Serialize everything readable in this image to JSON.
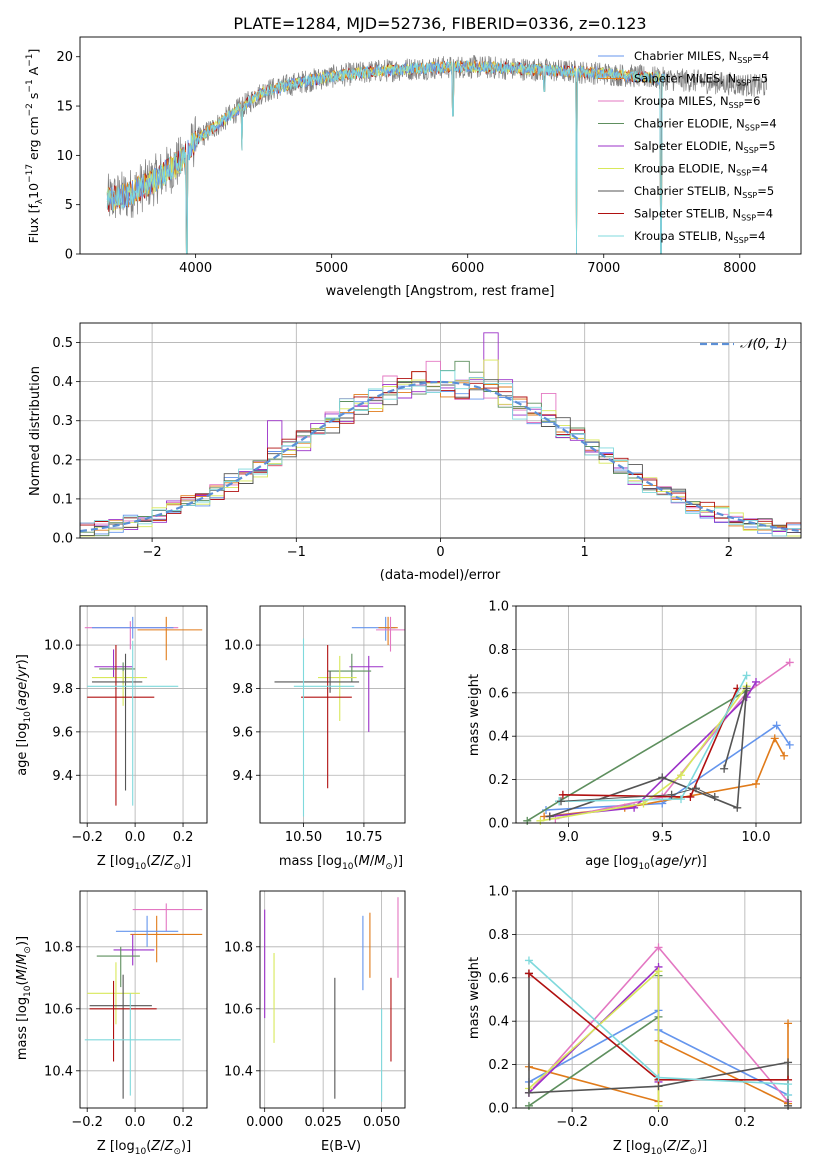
{
  "figure_title": "PLATE=1284, MJD=52736, FIBERID=0336, z=0.123",
  "colors": {
    "chabrier_miles": "#6495ed",
    "salpeter_miles": "#e07b1a",
    "kroupa_miles": "#e377c2",
    "chabrier_elodie": "#5e8f5e",
    "salpeter_elodie": "#9b30c8",
    "kroupa_elodie": "#d8e85a",
    "chabrier_stelib": "#555555",
    "salpeter_stelib": "#b01010",
    "kroupa_stelib": "#7fd9dc",
    "data": "#808080",
    "normal": "#5b8fd6",
    "grid": "#b0b0b0"
  },
  "chart_data": [
    {
      "type": "line",
      "panel": "spectrum",
      "xlabel": "wavelength [Angstrom, rest frame]",
      "ylabel": "Flux [fλ10⁻¹⁷ erg cm⁻² s⁻¹ A⁻¹]",
      "xlim": [
        3150,
        8450
      ],
      "ylim": [
        0,
        22
      ],
      "xticks": [
        "4000",
        "5000",
        "6000",
        "7000",
        "8000"
      ],
      "yticks": [
        "0",
        "5",
        "10",
        "15",
        "20"
      ],
      "legend_position": "top-right",
      "legend": [
        {
          "name": "Chabrier MILES, N",
          "sub": "SSP",
          "suffix": "=4",
          "color_key": "chabrier_miles"
        },
        {
          "name": "Salpeter MILES, N",
          "sub": "SSP",
          "suffix": "=5",
          "color_key": "salpeter_miles"
        },
        {
          "name": "Kroupa MILES, N",
          "sub": "SSP",
          "suffix": "=6",
          "color_key": "kroupa_miles"
        },
        {
          "name": "Chabrier ELODIE, N",
          "sub": "SSP",
          "suffix": "=4",
          "color_key": "chabrier_elodie"
        },
        {
          "name": "Salpeter ELODIE, N",
          "sub": "SSP",
          "suffix": "=5",
          "color_key": "salpeter_elodie"
        },
        {
          "name": "Kroupa ELODIE, N",
          "sub": "SSP",
          "suffix": "=4",
          "color_key": "kroupa_elodie"
        },
        {
          "name": "Chabrier STELIB, N",
          "sub": "SSP",
          "suffix": "=5",
          "color_key": "chabrier_stelib"
        },
        {
          "name": "Salpeter STELIB, N",
          "sub": "SSP",
          "suffix": "=4",
          "color_key": "salpeter_stelib"
        },
        {
          "name": "Kroupa STELIB, N",
          "sub": "SSP",
          "suffix": "=4",
          "color_key": "kroupa_stelib"
        }
      ],
      "continuum": {
        "x": [
          3350,
          3500,
          3700,
          3900,
          4000,
          4200,
          4500,
          4800,
          5000,
          5300,
          5600,
          6000,
          6500,
          7000,
          7500,
          8200
        ],
        "y": [
          5.5,
          6.0,
          7.5,
          9.5,
          11.5,
          13.5,
          16.5,
          17.5,
          18.0,
          18.5,
          18.8,
          19.0,
          18.7,
          18.3,
          17.7,
          17.0
        ]
      },
      "dips": [
        {
          "x": 3933,
          "y": 0.0
        },
        {
          "x": 6800,
          "y": 0.0
        },
        {
          "x": 7420,
          "y": 0.0
        },
        {
          "x": 4340,
          "y": 10.5
        },
        {
          "x": 5890,
          "y": 14.0
        },
        {
          "x": 6563,
          "y": 16.5
        }
      ],
      "model_range": [
        3350,
        7450
      ],
      "data_range": [
        3350,
        8200
      ]
    },
    {
      "type": "histogram",
      "panel": "residuals",
      "xlabel": "(data-model)/error",
      "ylabel": "Normed distribution",
      "xlim": [
        -2.5,
        2.5
      ],
      "ylim": [
        0,
        0.55
      ],
      "xticks": [
        "−2",
        "−1",
        "0",
        "1",
        "2"
      ],
      "yticks": [
        "0.0",
        "0.1",
        "0.2",
        "0.3",
        "0.4",
        "0.5"
      ],
      "bin_width": 0.1,
      "legend_position": "top-right",
      "legend": [
        {
          "name": "𝒩(0, 1)",
          "color_key": "normal"
        }
      ],
      "spikes": [
        {
          "x": 0.35,
          "y": 0.525,
          "color_key": "salpeter_elodie"
        },
        {
          "x": 0.35,
          "y": 0.455,
          "color_key": "kroupa_elodie"
        },
        {
          "x": 0.15,
          "y": 0.452,
          "color_key": "chabrier_elodie"
        },
        {
          "x": -0.05,
          "y": 0.452,
          "color_key": "kroupa_miles"
        },
        {
          "x": -1.15,
          "y": 0.3,
          "color_key": "salpeter_elodie"
        },
        {
          "x": 0.75,
          "y": 0.37,
          "color_key": "kroupa_miles"
        }
      ]
    },
    {
      "type": "errorbar",
      "panel": "age-vs-Z",
      "xlabel": "Z [log₁₀(Z/Z⊙)]",
      "ylabel": "age  [log₁₀(age/yr)]",
      "xlim": [
        -0.23,
        0.3
      ],
      "ylim": [
        9.18,
        10.18
      ],
      "xticks": [
        "−0.2",
        "0.0",
        "0.2"
      ],
      "yticks": [
        "9.4",
        "9.6",
        "9.8",
        "10.0"
      ],
      "points": [
        {
          "x": -0.02,
          "xerr": [
            0.19,
            0.2
          ],
          "y": 10.08,
          "yerr": [
            0.1,
            0.03
          ],
          "color_key": "kroupa_miles"
        },
        {
          "x": 0.13,
          "xerr": [
            0.12,
            0.15
          ],
          "y": 10.07,
          "yerr": [
            0.14,
            0.06
          ],
          "color_key": "salpeter_miles"
        },
        {
          "x": -0.01,
          "xerr": [
            0.17,
            0.17
          ],
          "y": 10.08,
          "yerr": [
            0.05,
            0.05
          ],
          "color_key": "chabrier_miles"
        },
        {
          "x": -0.09,
          "xerr": [
            0.08,
            0.08
          ],
          "y": 9.9,
          "yerr": [
            0.05,
            0.08
          ],
          "color_key": "salpeter_elodie"
        },
        {
          "x": -0.05,
          "xerr": [
            0.1,
            0.05
          ],
          "y": 9.89,
          "yerr": [
            0.07,
            0.03
          ],
          "color_key": "chabrier_elodie"
        },
        {
          "x": -0.05,
          "xerr": [
            0.13,
            0.1
          ],
          "y": 9.85,
          "yerr": [
            0.13,
            0.03
          ],
          "color_key": "kroupa_elodie"
        },
        {
          "x": -0.04,
          "xerr": [
            0.14,
            0.07
          ],
          "y": 9.83,
          "yerr": [
            0.5,
            0.13
          ],
          "color_key": "chabrier_stelib"
        },
        {
          "x": -0.08,
          "xerr": [
            0.12,
            0.16
          ],
          "y": 9.76,
          "yerr": [
            0.5,
            0.24
          ],
          "color_key": "salpeter_stelib"
        },
        {
          "x": -0.01,
          "xerr": [
            0.19,
            0.19
          ],
          "y": 9.81,
          "yerr": [
            0.55,
            0.21
          ],
          "color_key": "kroupa_stelib"
        }
      ]
    },
    {
      "type": "errorbar",
      "panel": "age-vs-mass",
      "xlabel": "mass [log₁₀(M/M⊙)]",
      "xlim": [
        10.32,
        10.92
      ],
      "ylim": [
        9.18,
        10.18
      ],
      "xticks": [
        "10.50",
        "10.75"
      ],
      "yticks": [
        "9.4",
        "9.6",
        "9.8",
        "10.0"
      ],
      "points": [
        {
          "x": 10.84,
          "xerr": [
            0.14,
            0.04
          ],
          "y": 10.08,
          "yerr": [
            0.06,
            0.05
          ],
          "color_key": "chabrier_miles"
        },
        {
          "x": 10.85,
          "xerr": [
            0.04,
            0.04
          ],
          "y": 10.08,
          "yerr": [
            0.08,
            0.05
          ],
          "color_key": "salpeter_miles"
        },
        {
          "x": 10.86,
          "xerr": [
            0.06,
            0.06
          ],
          "y": 10.07,
          "yerr": [
            0.1,
            0.06
          ],
          "color_key": "kroupa_miles"
        },
        {
          "x": 10.77,
          "xerr": [
            0.08,
            0.06
          ],
          "y": 9.9,
          "yerr": [
            0.3,
            0.05
          ],
          "color_key": "salpeter_elodie"
        },
        {
          "x": 10.7,
          "xerr": [
            0.1,
            0.08
          ],
          "y": 9.88,
          "yerr": [
            0.05,
            0.08
          ],
          "color_key": "chabrier_elodie"
        },
        {
          "x": 10.65,
          "xerr": [
            0.09,
            0.07
          ],
          "y": 9.85,
          "yerr": [
            0.2,
            0.1
          ],
          "color_key": "kroupa_elodie"
        },
        {
          "x": 10.61,
          "xerr": [
            0.23,
            0.12
          ],
          "y": 9.83,
          "yerr": [
            0.05,
            0.05
          ],
          "color_key": "chabrier_stelib"
        },
        {
          "x": 10.6,
          "xerr": [
            0.11,
            0.1
          ],
          "y": 9.76,
          "yerr": [
            0.42,
            0.24
          ],
          "color_key": "salpeter_stelib"
        },
        {
          "x": 10.5,
          "xerr": [
            0.04,
            0.21
          ],
          "y": 9.81,
          "yerr": [
            0.6,
            0.22
          ],
          "color_key": "kroupa_stelib"
        }
      ]
    },
    {
      "type": "line",
      "panel": "mass-weight-vs-age",
      "xlabel": "age  [log₁₀(age/yr)]",
      "ylabel": "mass weight",
      "xlim": [
        8.72,
        10.24
      ],
      "ylim": [
        0,
        1
      ],
      "xticks": [
        "9.0",
        "9.5",
        "10.0"
      ],
      "yticks": [
        "0.0",
        "0.2",
        "0.4",
        "0.6",
        "0.8",
        "1.0"
      ],
      "series": [
        {
          "color_key": "chabrier_miles",
          "x": [
            8.88,
            9.5,
            10.11,
            10.18
          ],
          "y": [
            0.06,
            0.09,
            0.45,
            0.36
          ]
        },
        {
          "color_key": "salpeter_miles",
          "x": [
            8.87,
            9.3,
            10.0,
            10.1,
            10.15
          ],
          "y": [
            0.03,
            0.07,
            0.18,
            0.39,
            0.31
          ]
        },
        {
          "color_key": "kroupa_miles",
          "x": [
            8.93,
            9.5,
            9.95,
            10.18
          ],
          "y": [
            0.02,
            0.12,
            0.6,
            0.74
          ]
        },
        {
          "color_key": "chabrier_elodie",
          "x": [
            8.78,
            8.95,
            9.95
          ],
          "y": [
            0.01,
            0.1,
            0.61
          ]
        },
        {
          "color_key": "salpeter_elodie",
          "x": [
            8.9,
            9.35,
            9.95,
            10.0
          ],
          "y": [
            0.03,
            0.07,
            0.58,
            0.65
          ]
        },
        {
          "color_key": "kroupa_elodie",
          "x": [
            8.85,
            9.4,
            9.6,
            9.95
          ],
          "y": [
            0.01,
            0.09,
            0.22,
            0.63
          ]
        },
        {
          "color_key": "chabrier_stelib",
          "x": [
            8.9,
            9.5,
            9.9,
            9.95,
            9.83
          ],
          "y": [
            0.03,
            0.21,
            0.07,
            0.62,
            0.25
          ]
        },
        {
          "color_key": "salpeter_stelib",
          "x": [
            8.97,
            9.65,
            9.9
          ],
          "y": [
            0.13,
            0.12,
            0.62
          ]
        },
        {
          "color_key": "kroupa_stelib",
          "x": [
            8.95,
            9.6,
            9.95
          ],
          "y": [
            0.1,
            0.11,
            0.68
          ]
        }
      ],
      "extra_gray_series": {
        "x": [
          8.96,
          9.55,
          9.68,
          9.78
        ],
        "y": [
          0.1,
          0.13,
          0.16,
          0.12
        ]
      }
    },
    {
      "type": "errorbar",
      "panel": "mass-vs-Z",
      "xlabel": "Z [log₁₀(Z/Z⊙)]",
      "ylabel": "mass [log₁₀(M/M⊙)]",
      "xlim": [
        -0.23,
        0.3
      ],
      "ylim": [
        10.28,
        10.98
      ],
      "xticks": [
        "−0.2",
        "0.0",
        "0.2"
      ],
      "yticks": [
        "10.4",
        "10.6",
        "10.8"
      ],
      "points": [
        {
          "x": 0.13,
          "xerr": [
            0.14,
            0.15
          ],
          "y": 10.92,
          "yerr": [
            0.07,
            0.02
          ],
          "color_key": "kroupa_miles"
        },
        {
          "x": 0.09,
          "xerr": [
            0.11,
            0.19
          ],
          "y": 10.84,
          "yerr": [
            0.09,
            0.06
          ],
          "color_key": "salpeter_miles"
        },
        {
          "x": 0.05,
          "xerr": [
            0.13,
            0.13
          ],
          "y": 10.85,
          "yerr": [
            0.05,
            0.05
          ],
          "color_key": "chabrier_miles"
        },
        {
          "x": -0.01,
          "xerr": [
            0.08,
            0.09
          ],
          "y": 10.79,
          "yerr": [
            0.05,
            0.05
          ],
          "color_key": "salpeter_elodie"
        },
        {
          "x": -0.06,
          "xerr": [
            0.1,
            0.08
          ],
          "y": 10.77,
          "yerr": [
            0.1,
            0.03
          ],
          "color_key": "chabrier_elodie"
        },
        {
          "x": -0.08,
          "xerr": [
            0.12,
            0.1
          ],
          "y": 10.65,
          "yerr": [
            0.1,
            0.1
          ],
          "color_key": "kroupa_elodie"
        },
        {
          "x": -0.05,
          "xerr": [
            0.14,
            0.12
          ],
          "y": 10.61,
          "yerr": [
            0.3,
            0.1
          ],
          "color_key": "chabrier_stelib"
        },
        {
          "x": -0.09,
          "xerr": [
            0.1,
            0.18
          ],
          "y": 10.6,
          "yerr": [
            0.17,
            0.09
          ],
          "color_key": "salpeter_stelib"
        },
        {
          "x": -0.02,
          "xerr": [
            0.19,
            0.21
          ],
          "y": 10.5,
          "yerr": [
            0.18,
            0.15
          ],
          "color_key": "kroupa_stelib"
        }
      ]
    },
    {
      "type": "errorbar",
      "panel": "mass-vs-EBV",
      "xlabel": "E(B-V)",
      "xlim": [
        -0.002,
        0.06
      ],
      "ylim": [
        10.28,
        10.98
      ],
      "xticks": [
        "0.000",
        "0.025",
        "0.050"
      ],
      "yticks": [
        "10.4",
        "10.6",
        "10.8"
      ],
      "points": [
        {
          "x": 0.0,
          "y": 10.76,
          "yerr": [
            0.19,
            0.16
          ],
          "color_key": "salpeter_elodie"
        },
        {
          "x": 0.004,
          "y": 10.63,
          "yerr": [
            0.14,
            0.15
          ],
          "color_key": "kroupa_elodie"
        },
        {
          "x": 0.03,
          "y": 10.5,
          "yerr": [
            0.19,
            0.2
          ],
          "color_key": "chabrier_stelib"
        },
        {
          "x": 0.042,
          "y": 10.78,
          "yerr": [
            0.12,
            0.12
          ],
          "color_key": "chabrier_miles"
        },
        {
          "x": 0.045,
          "y": 10.8,
          "yerr": [
            0.1,
            0.11
          ],
          "color_key": "salpeter_miles"
        },
        {
          "x": 0.05,
          "y": 10.45,
          "yerr": [
            0.15,
            0.15
          ],
          "color_key": "kroupa_stelib"
        },
        {
          "x": 0.054,
          "y": 10.56,
          "yerr": [
            0.13,
            0.14
          ],
          "color_key": "salpeter_stelib"
        },
        {
          "x": 0.057,
          "y": 10.84,
          "yerr": [
            0.14,
            0.12
          ],
          "color_key": "kroupa_miles"
        }
      ]
    },
    {
      "type": "line",
      "panel": "mass-weight-vs-Z",
      "xlabel": "Z [log₁₀(Z/Z⊙)]",
      "ylabel": "mass weight",
      "xlim": [
        -0.33,
        0.33
      ],
      "ylim": [
        0,
        1
      ],
      "xticks": [
        "−0.2",
        "0.0",
        "0.2"
      ],
      "yticks": [
        "0.0",
        "0.2",
        "0.4",
        "0.6",
        "0.8",
        "1.0"
      ],
      "series": [
        {
          "color_key": "chabrier_miles",
          "x": [
            -0.3,
            0.0,
            0.0,
            0.3
          ],
          "y": [
            0.12,
            0.45,
            0.36,
            0.06
          ]
        },
        {
          "color_key": "salpeter_miles",
          "x": [
            -0.3,
            0.0,
            0.0,
            0.3,
            0.3
          ],
          "y": [
            0.19,
            0.03,
            0.31,
            0.02,
            0.39
          ]
        },
        {
          "color_key": "kroupa_miles",
          "x": [
            -0.3,
            0.0,
            0.3
          ],
          "y": [
            0.07,
            0.74,
            0.03
          ]
        },
        {
          "color_key": "chabrier_elodie",
          "x": [
            -0.3,
            0.0,
            0.0
          ],
          "y": [
            0.01,
            0.42,
            0.61
          ]
        },
        {
          "color_key": "salpeter_elodie",
          "x": [
            -0.3,
            0.0,
            0.0
          ],
          "y": [
            0.07,
            0.65,
            0.12
          ]
        },
        {
          "color_key": "kroupa_elodie",
          "x": [
            -0.3,
            0.0,
            0.0
          ],
          "y": [
            0.09,
            0.63,
            0.01
          ]
        },
        {
          "color_key": "chabrier_stelib",
          "x": [
            -0.3,
            -0.3,
            0.0,
            0.3,
            0.3
          ],
          "y": [
            0.62,
            0.07,
            0.1,
            0.21,
            0.01
          ]
        },
        {
          "color_key": "salpeter_stelib",
          "x": [
            -0.3,
            0.0,
            0.3
          ],
          "y": [
            0.62,
            0.13,
            0.13
          ]
        },
        {
          "color_key": "kroupa_stelib",
          "x": [
            -0.3,
            0.0,
            0.3,
            0.3
          ],
          "y": [
            0.68,
            0.14,
            0.11,
            0.06
          ]
        }
      ]
    }
  ]
}
